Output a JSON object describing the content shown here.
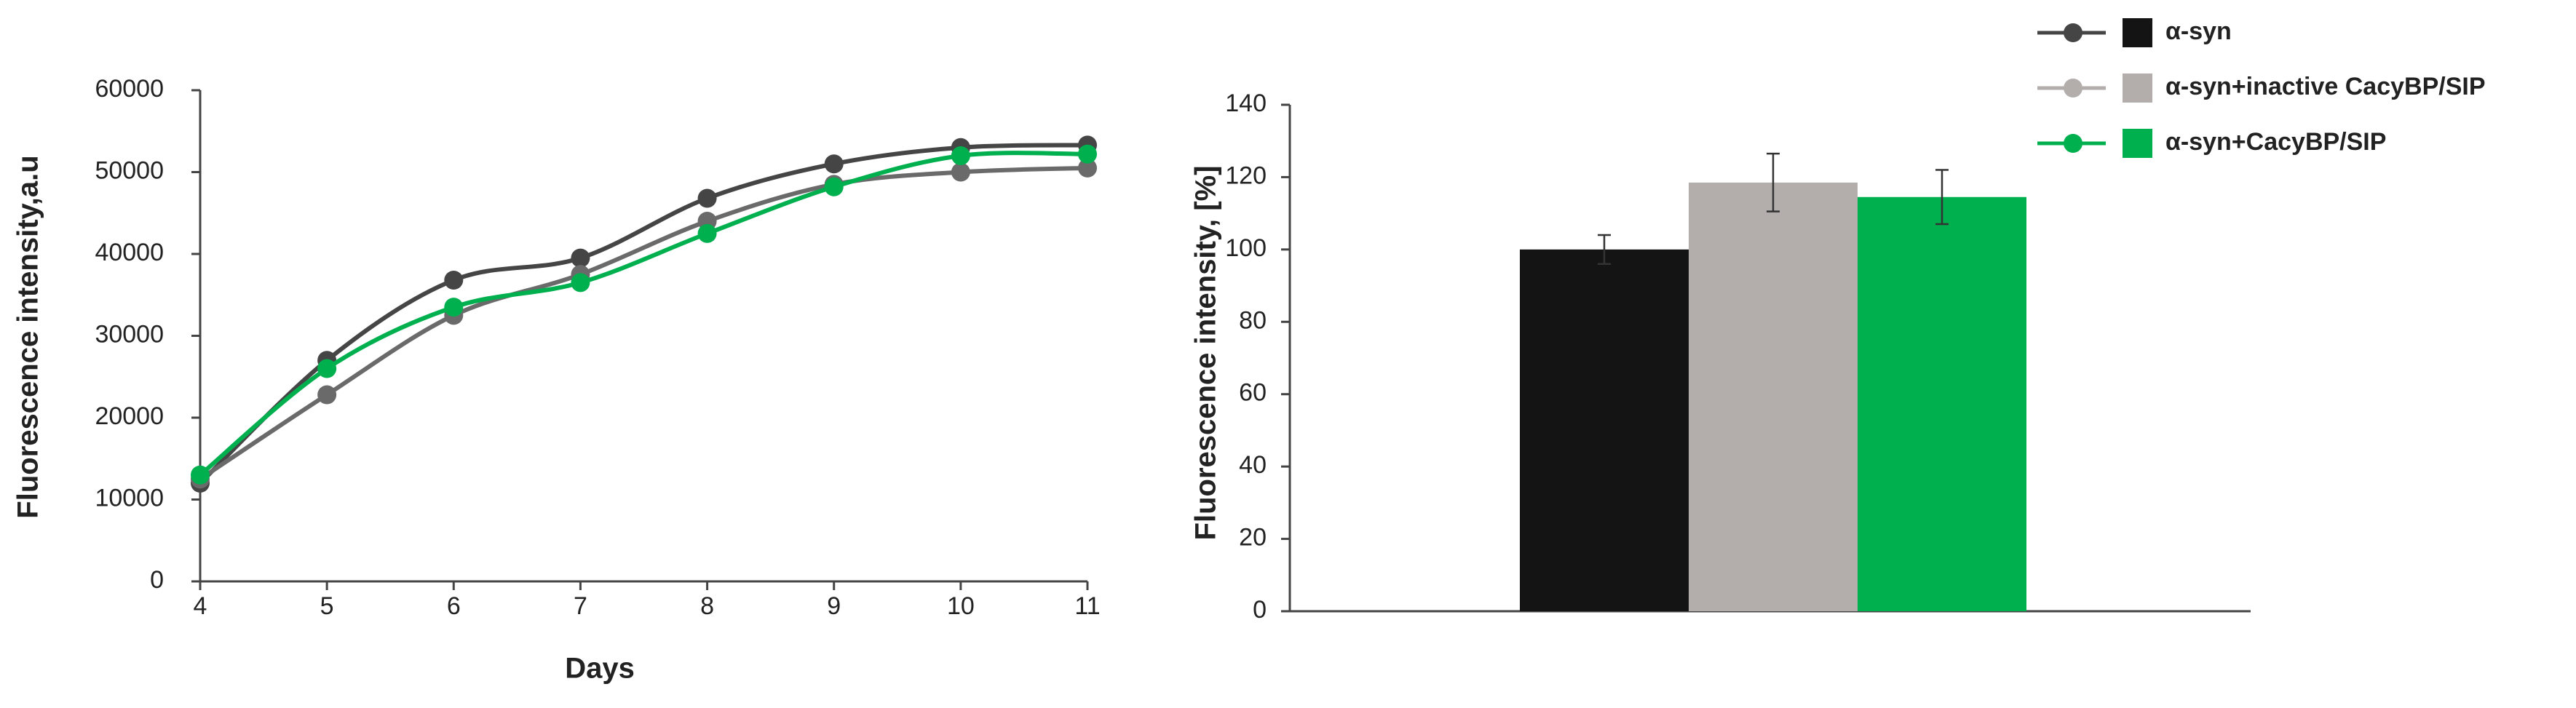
{
  "chart_data": [
    {
      "type": "line",
      "xlabel": "Days",
      "ylabel": "Fluorescence intensity,a.u",
      "x": [
        4,
        5,
        6,
        7,
        8,
        9,
        10,
        11
      ],
      "series": [
        {
          "color": "#454545",
          "values": [
            12000,
            27000,
            36800,
            39500,
            46800,
            51000,
            53000,
            53300
          ]
        },
        {
          "color": "#6a6a6a",
          "values": [
            12500,
            22800,
            32500,
            37500,
            44000,
            48500,
            50000,
            50500
          ]
        },
        {
          "color": "#00b04f",
          "values": [
            13000,
            26000,
            33500,
            36500,
            42500,
            48200,
            52000,
            52200
          ]
        }
      ],
      "xlim": [
        4,
        11
      ],
      "xticks": [
        4,
        5,
        6,
        7,
        8,
        9,
        10,
        11
      ],
      "ylim": [
        0,
        60000
      ],
      "yticks": [
        0,
        10000,
        20000,
        30000,
        40000,
        50000,
        60000
      ],
      "grid": false
    },
    {
      "type": "bar",
      "ylabel": "Fluorescence intensity, [%]",
      "series": [
        {
          "name": "α-syn",
          "color": "#141414",
          "values": [
            100
          ],
          "errors": [
            4
          ]
        },
        {
          "name": "α-syn+inactive CacyBP/SIP",
          "color": "#b3aeab",
          "values": [
            118.5
          ],
          "errors": [
            8
          ]
        },
        {
          "name": "α-syn+CacyBP/SIP",
          "color": "#00b04f",
          "values": [
            114.5
          ],
          "errors": [
            7.5
          ]
        }
      ],
      "ylim": [
        0,
        140
      ],
      "yticks": [
        0,
        20,
        40,
        60,
        80,
        100,
        120,
        140
      ],
      "grid": false,
      "legend": "top-right"
    }
  ]
}
